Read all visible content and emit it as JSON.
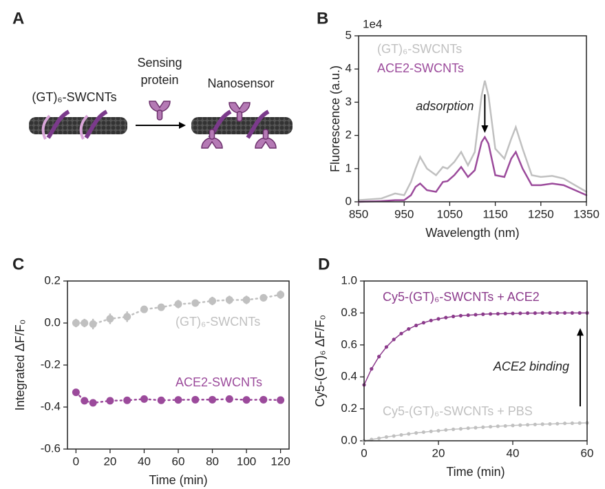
{
  "diagram": {
    "label": "A",
    "tube_label": "(GT)₆-SWCNTs",
    "protein_label": [
      "Sensing",
      "protein"
    ],
    "product_label": "Nanosensor"
  },
  "chart_data": [
    {
      "type": "line",
      "label": "B",
      "yaxis_offset_label": "1e4",
      "xlabel": "Wavelength (nm)",
      "ylabel": "Fluorescence (a.u.)",
      "x": [
        850,
        900,
        930,
        950,
        965,
        975,
        985,
        1000,
        1020,
        1035,
        1045,
        1060,
        1075,
        1090,
        1105,
        1120,
        1127,
        1135,
        1150,
        1170,
        1185,
        1195,
        1210,
        1230,
        1250,
        1275,
        1300,
        1325,
        1350
      ],
      "series": [
        {
          "name": "(GT)₆-SWCNTs",
          "color": "#c0c0c0",
          "values": [
            0.05,
            0.1,
            0.25,
            0.2,
            0.6,
            1.0,
            1.35,
            1.0,
            0.8,
            1.05,
            1.0,
            1.2,
            1.5,
            1.1,
            1.5,
            3.2,
            3.65,
            3.2,
            1.6,
            1.3,
            1.9,
            2.25,
            1.6,
            0.8,
            0.75,
            0.78,
            0.7,
            0.5,
            0.3
          ]
        },
        {
          "name": "ACE2-SWCNTs",
          "color": "#9b4a9b",
          "values": [
            0,
            0.02,
            0.05,
            0.05,
            0.2,
            0.45,
            0.55,
            0.35,
            0.3,
            0.6,
            0.62,
            0.8,
            1.05,
            0.75,
            0.95,
            1.8,
            1.95,
            1.75,
            0.8,
            0.75,
            1.3,
            1.5,
            1.0,
            0.5,
            0.5,
            0.55,
            0.5,
            0.35,
            0.2
          ]
        }
      ],
      "annotations": [
        {
          "text": "adsorption"
        }
      ],
      "xlim": [
        850,
        1350
      ],
      "xticks": [
        850,
        950,
        1050,
        1150,
        1250,
        1350
      ],
      "ylim": [
        0,
        5
      ],
      "yticks": [
        0,
        1,
        2,
        3,
        4,
        5
      ]
    },
    {
      "type": "scatter",
      "label": "C",
      "xlabel": "Time (min)",
      "ylabel": "Integrated ΔF/F₀",
      "linestyle": "dotted",
      "x": [
        0,
        5,
        10,
        20,
        30,
        40,
        50,
        60,
        70,
        80,
        90,
        100,
        110,
        120
      ],
      "series": [
        {
          "name": "(GT)₆-SWCNTs",
          "color": "#c0c0c0",
          "values": [
            0,
            0,
            -0.005,
            0.02,
            0.03,
            0.065,
            0.075,
            0.09,
            0.095,
            0.105,
            0.11,
            0.11,
            0.12,
            0.135
          ],
          "errors": [
            0.02,
            0.02,
            0.025,
            0.025,
            0.025,
            0.015,
            0.015,
            0.02,
            0.015,
            0.02,
            0.02,
            0.02,
            0.015,
            0.02
          ]
        },
        {
          "name": "ACE2-SWCNTs",
          "color": "#9b4a9b",
          "values": [
            -0.33,
            -0.37,
            -0.38,
            -0.37,
            -0.368,
            -0.362,
            -0.368,
            -0.366,
            -0.365,
            -0.365,
            -0.362,
            -0.366,
            -0.365,
            -0.367
          ]
        }
      ],
      "xlim": [
        -5,
        125
      ],
      "xticks": [
        0,
        20,
        40,
        60,
        80,
        100,
        120
      ],
      "ylim": [
        -0.6,
        0.2
      ],
      "yticks": [
        -0.6,
        -0.4,
        -0.2,
        {
          "value": 0,
          "label": "0.0"
        },
        0.2
      ]
    },
    {
      "type": "line",
      "label": "D",
      "xlabel": "Time (min)",
      "ylabel": "Cy5-(GT)₆ ΔF/F₀",
      "markers": true,
      "x": [
        0,
        2,
        4,
        6,
        8,
        10,
        12,
        14,
        16,
        18,
        20,
        22,
        24,
        26,
        28,
        30,
        32,
        34,
        36,
        38,
        40,
        42,
        44,
        46,
        48,
        50,
        52,
        54,
        56,
        58,
        60
      ],
      "series": [
        {
          "name": "Cy5-(GT)₆-SWCNTs + ACE2",
          "color": "#8b3a8b",
          "values": [
            0.35,
            0.45,
            0.527,
            0.587,
            0.634,
            0.671,
            0.7,
            0.722,
            0.739,
            0.753,
            0.763,
            0.771,
            0.778,
            0.783,
            0.786,
            0.789,
            0.792,
            0.794,
            0.795,
            0.796,
            0.797,
            0.798,
            0.799,
            0.799,
            0.8,
            0.8,
            0.8,
            0.8,
            0.8,
            0.8,
            0.8
          ]
        },
        {
          "name": "Cy5-(GT)₆-SWCNTs + PBS",
          "color": "#c0c0c0",
          "values": [
            0,
            0.008,
            0.016,
            0.024,
            0.03,
            0.037,
            0.043,
            0.049,
            0.054,
            0.059,
            0.063,
            0.068,
            0.072,
            0.075,
            0.079,
            0.082,
            0.085,
            0.088,
            0.091,
            0.093,
            0.096,
            0.098,
            0.1,
            0.102,
            0.104,
            0.105,
            0.107,
            0.109,
            0.11,
            0.111,
            0.112
          ]
        }
      ],
      "annotations": [
        {
          "text": "ACE2 binding"
        }
      ],
      "xlim": [
        0,
        60
      ],
      "xticks": [
        0,
        20,
        40,
        60
      ],
      "ylim": [
        0,
        1
      ],
      "yticks": [
        {
          "value": 0,
          "label": "0.0"
        },
        0.2,
        0.4,
        0.6,
        0.8,
        {
          "value": 1,
          "label": "1.0"
        }
      ]
    }
  ]
}
